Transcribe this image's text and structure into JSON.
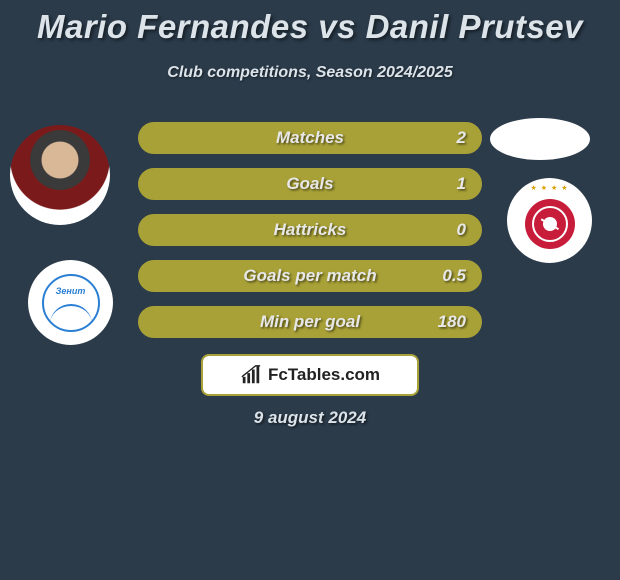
{
  "title": "Mario Fernandes vs Danil Prutsev",
  "subtitle": "Club competitions, Season 2024/2025",
  "date": "9 august 2024",
  "watermark": "FcTables.com",
  "colors": {
    "background": "#2b3b4a",
    "bar_fill": "#a8a137",
    "bar_border": "#a8a137",
    "text": "#e8e8e8"
  },
  "left": {
    "player_name": "Mario Fernandes",
    "club_name": "Zenit",
    "club_text": "Зенит",
    "club_color": "#2a7fd4"
  },
  "right": {
    "player_name": "Danil Prutsev",
    "club_name": "Spartak Moscow",
    "club_color": "#c71d3a"
  },
  "stats": [
    {
      "label": "Matches",
      "value": "2",
      "left_pct": 0
    },
    {
      "label": "Goals",
      "value": "1",
      "left_pct": 0
    },
    {
      "label": "Hattricks",
      "value": "0",
      "left_pct": 0
    },
    {
      "label": "Goals per match",
      "value": "0.5",
      "left_pct": 0
    },
    {
      "label": "Min per goal",
      "value": "180",
      "left_pct": 0
    }
  ]
}
